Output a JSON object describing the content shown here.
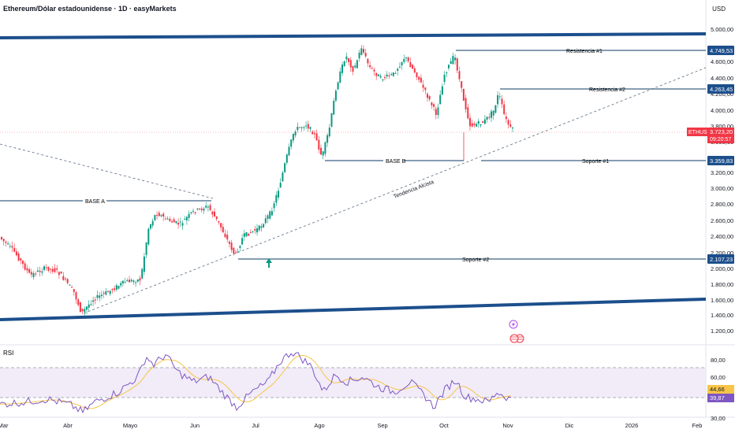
{
  "header": {
    "title": "Ethereum/Dólar estadounidense · 1D · easyMarkets",
    "currency": "USD"
  },
  "chart_data": [
    {
      "type": "candlestick",
      "symbol": "ETHUSD",
      "y_ticks": [
        "5.000,00",
        "4.600,00",
        "4.400,00",
        "4.200,00",
        "4.000,00",
        "3.800,00",
        "3.600,00",
        "3.200,00",
        "3.000,00",
        "2.800,00",
        "2.600,00",
        "2.400,00",
        "2.200,00",
        "2.000,00",
        "1.800,00",
        "1.600,00",
        "1.400,00",
        "1.200,00"
      ],
      "x_ticks": [
        "Mar",
        "Abr",
        "Mayo",
        "Jun",
        "Jul",
        "Ago",
        "Sep",
        "Oct",
        "Nov",
        "Dic",
        "2026",
        "Feb"
      ],
      "price_badges": [
        {
          "label": "4.749,53",
          "color": "#1c4f8c"
        },
        {
          "label": "4.263,45",
          "color": "#1c4f8c"
        },
        {
          "label": "3.359,83",
          "color": "#1c4f8c"
        },
        {
          "label": "2.107,23",
          "color": "#1c4f8c"
        }
      ],
      "current": {
        "symbol": "ETHUSD",
        "price": "3.723,20",
        "countdown": "09:20:57",
        "color": "#f23645"
      },
      "levels": [
        {
          "name": "Resistencia #1",
          "value": 4749.53
        },
        {
          "name": "Resistencia #2",
          "value": 4263.45
        },
        {
          "name": "Soporte #1",
          "value": 3359.83
        },
        {
          "name": "Soporte #2",
          "value": 2107.23
        }
      ],
      "annotations": {
        "base_a": "BASE A",
        "base_b": "BASE B",
        "trend": "Tendencia Alcista"
      },
      "colors": {
        "up": "#089981",
        "down": "#f23645",
        "channel": "#1c4f8c",
        "line": "#0c3b66"
      },
      "ylim": [
        1100,
        5150
      ]
    },
    {
      "type": "line",
      "title": "RSI",
      "y_ticks": [
        "80,00",
        "60,00",
        "30,00"
      ],
      "badges": [
        {
          "label": "44,66",
          "color": "#f7c548"
        },
        {
          "label": "39,87",
          "color": "#7e57c2"
        }
      ],
      "levels": [
        70,
        30
      ],
      "ylim": [
        20,
        90
      ],
      "colors": {
        "rsi": "#7e57c2",
        "ma": "#f7c548"
      }
    }
  ]
}
